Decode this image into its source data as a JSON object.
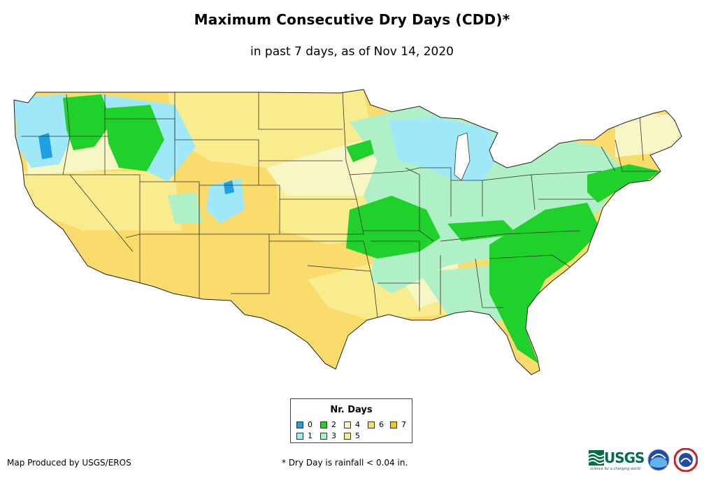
{
  "title": "Maximum Consecutive Dry Days (CDD)*",
  "subtitle": "in past 7 days, as of Nov 14, 2020",
  "legend": {
    "title": "Nr. Days",
    "items": [
      {
        "label": "0",
        "color": "#1f9fe4"
      },
      {
        "label": "1",
        "color": "#9fe8f7"
      },
      {
        "label": "2",
        "color": "#1fd12a"
      },
      {
        "label": "3",
        "color": "#b0f0c6"
      },
      {
        "label": "4",
        "color": "#f7f6c5"
      },
      {
        "label": "5",
        "color": "#f8ec8e"
      },
      {
        "label": "6",
        "color": "#f9dc6b"
      },
      {
        "label": "7",
        "color": "#f7c21a"
      }
    ]
  },
  "credit": "Map Produced by USGS/EROS",
  "footnote": "* Dry Day is rainfall < 0.04 in.",
  "logos": {
    "usgs_text": "USGS",
    "usgs_tagline": "science for a changing world"
  }
}
